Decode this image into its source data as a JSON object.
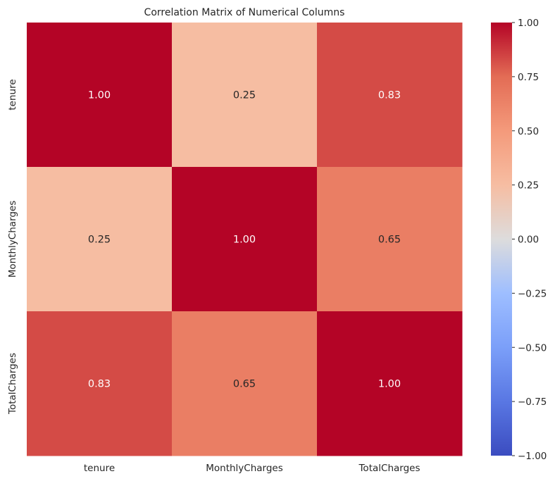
{
  "chart_data": {
    "type": "heatmap",
    "title": "Correlation Matrix of Numerical Columns",
    "x_labels": [
      "tenure",
      "MonthlyCharges",
      "TotalCharges"
    ],
    "y_labels": [
      "tenure",
      "MonthlyCharges",
      "TotalCharges"
    ],
    "values": [
      [
        1.0,
        0.25,
        0.83
      ],
      [
        0.25,
        1.0,
        0.65
      ],
      [
        0.83,
        0.65,
        1.0
      ]
    ],
    "annotations": [
      [
        "1.00",
        "0.25",
        "0.83"
      ],
      [
        "0.25",
        "1.00",
        "0.65"
      ],
      [
        "0.83",
        "0.65",
        "1.00"
      ]
    ],
    "colormap": "coolwarm",
    "vmin": -1.0,
    "vmax": 1.0,
    "colorbar_ticks": [
      1.0,
      0.75,
      0.5,
      0.25,
      0.0,
      -0.25,
      -0.5,
      -0.75,
      -1.0
    ],
    "colorbar_tick_labels": [
      "1.00",
      "0.75",
      "0.50",
      "0.25",
      "0.00",
      "−0.25",
      "−0.50",
      "−0.75",
      "−1.00"
    ]
  }
}
